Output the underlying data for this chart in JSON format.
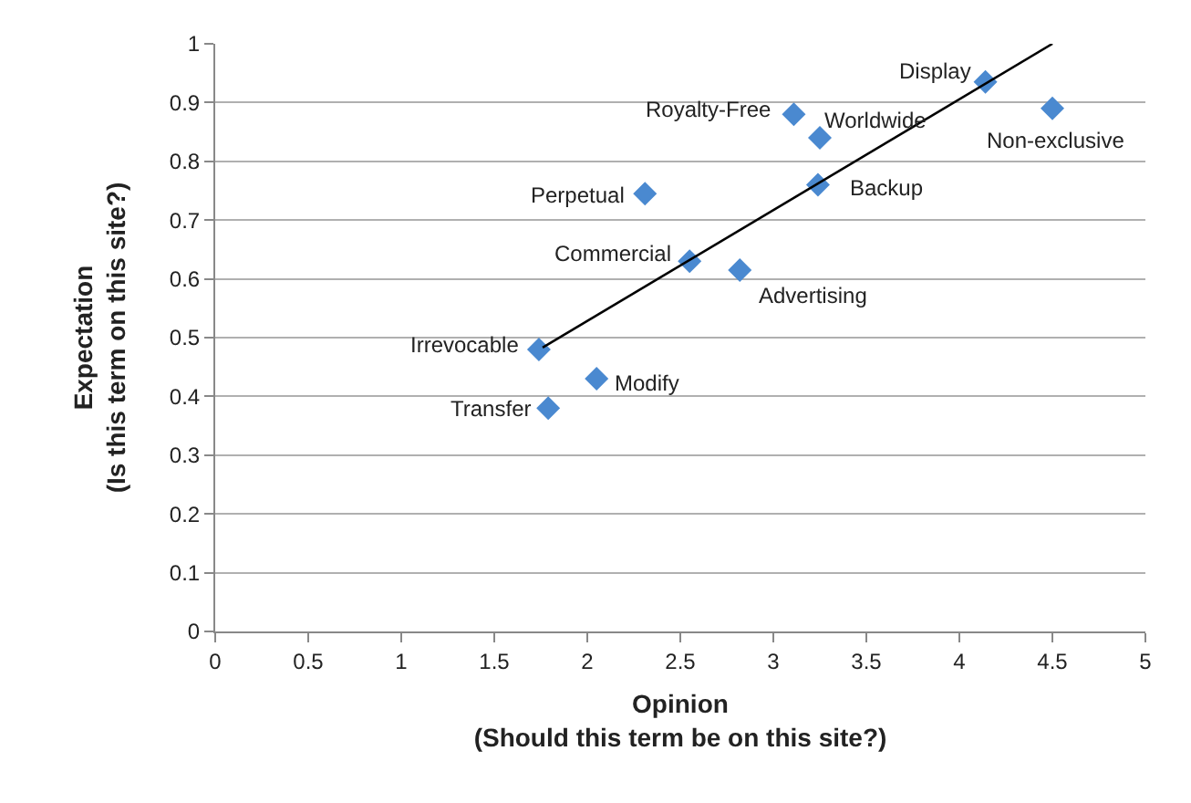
{
  "chart_data": {
    "type": "scatter",
    "xlabel": "Opinion\n(Should this term be on this site?)",
    "ylabel": "Expectation\n(Is this term on this site?)",
    "xlim": [
      0,
      5
    ],
    "xticks": [
      0,
      0.5,
      1,
      1.5,
      2,
      2.5,
      3,
      3.5,
      4,
      4.5,
      5
    ],
    "ylim": [
      0,
      1
    ],
    "yticks": [
      0,
      0.1,
      0.2,
      0.3,
      0.4,
      0.5,
      0.6,
      0.7,
      0.8,
      0.9,
      1
    ],
    "grid": "y",
    "series": [
      {
        "marker": "diamond",
        "color": "#4a89d0",
        "x": [
          1.74,
          1.79,
          2.05,
          2.31,
          2.55,
          2.82,
          3.11,
          3.25,
          3.24,
          4.14,
          4.5
        ],
        "values": [
          0.48,
          0.38,
          0.43,
          0.745,
          0.63,
          0.615,
          0.88,
          0.84,
          0.76,
          0.935,
          0.89
        ]
      },
      {
        "type": "line",
        "marker": "none",
        "color": "#000000",
        "x": [
          1.76,
          4.5
        ],
        "values": [
          0.483,
          1.0
        ]
      }
    ],
    "annotations": [
      {
        "text": "Irrevocable",
        "x": 1.74,
        "y": 0.48
      },
      {
        "text": "Transfer",
        "x": 1.79,
        "y": 0.38
      },
      {
        "text": "Modify",
        "x": 2.05,
        "y": 0.43
      },
      {
        "text": "Perpetual",
        "x": 2.31,
        "y": 0.745
      },
      {
        "text": "Commercial",
        "x": 2.55,
        "y": 0.63
      },
      {
        "text": "Advertising",
        "x": 2.82,
        "y": 0.615
      },
      {
        "text": "Royalty-Free",
        "x": 3.11,
        "y": 0.88
      },
      {
        "text": "Worldwide",
        "x": 3.25,
        "y": 0.84
      },
      {
        "text": "Backup",
        "x": 3.24,
        "y": 0.76
      },
      {
        "text": "Display",
        "x": 4.14,
        "y": 0.935
      },
      {
        "text": "Non-exclusive",
        "x": 4.5,
        "y": 0.89
      }
    ]
  }
}
